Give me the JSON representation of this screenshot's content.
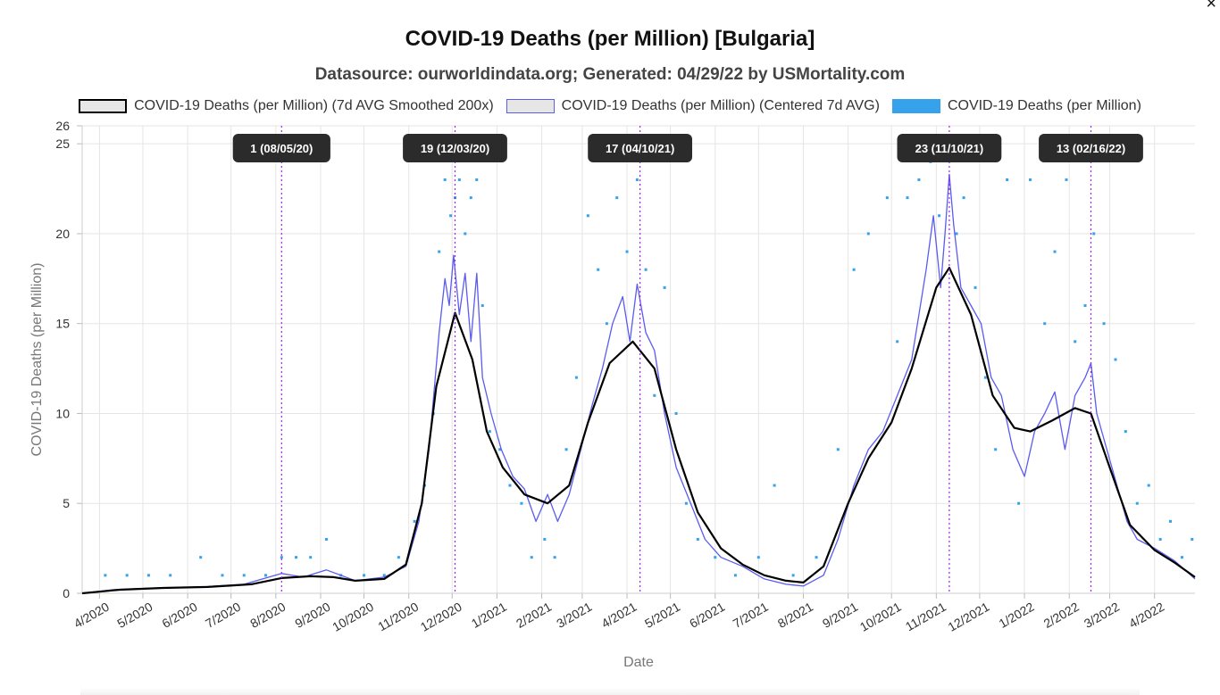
{
  "window": {
    "close_label": "×"
  },
  "chart_data": {
    "type": "line",
    "title": "COVID-19 Deaths (per Million) [Bulgaria]",
    "subtitle": "Datasource: ourworldindata.org; Generated: 04/29/22 by USMortality.com",
    "xlabel": "Date",
    "ylabel": "COVID-19 Deaths (per Million)",
    "ylim": [
      0,
      26
    ],
    "yticks": [
      0,
      5,
      10,
      15,
      20,
      25,
      26
    ],
    "xlim": [
      "2020-03-20",
      "2022-04-29"
    ],
    "xticks": [
      {
        "date": "2020-04-01",
        "label": "4/2020"
      },
      {
        "date": "2020-05-01",
        "label": "5/2020"
      },
      {
        "date": "2020-06-01",
        "label": "6/2020"
      },
      {
        "date": "2020-07-01",
        "label": "7/2020"
      },
      {
        "date": "2020-08-01",
        "label": "8/2020"
      },
      {
        "date": "2020-09-01",
        "label": "9/2020"
      },
      {
        "date": "2020-10-01",
        "label": "10/2020"
      },
      {
        "date": "2020-11-01",
        "label": "11/2020"
      },
      {
        "date": "2020-12-01",
        "label": "12/2020"
      },
      {
        "date": "2021-01-01",
        "label": "1/2021"
      },
      {
        "date": "2021-02-01",
        "label": "2/2021"
      },
      {
        "date": "2021-03-01",
        "label": "3/2021"
      },
      {
        "date": "2021-04-01",
        "label": "4/2021"
      },
      {
        "date": "2021-05-01",
        "label": "5/2021"
      },
      {
        "date": "2021-06-01",
        "label": "6/2021"
      },
      {
        "date": "2021-07-01",
        "label": "7/2021"
      },
      {
        "date": "2021-08-01",
        "label": "8/2021"
      },
      {
        "date": "2021-09-01",
        "label": "9/2021"
      },
      {
        "date": "2021-10-01",
        "label": "10/2021"
      },
      {
        "date": "2021-11-01",
        "label": "11/2021"
      },
      {
        "date": "2021-12-01",
        "label": "12/2021"
      },
      {
        "date": "2022-01-01",
        "label": "1/2022"
      },
      {
        "date": "2022-02-01",
        "label": "2/2022"
      },
      {
        "date": "2022-03-01",
        "label": "3/2022"
      },
      {
        "date": "2022-04-01",
        "label": "4/2022"
      }
    ],
    "grid": true,
    "legend_position": "top",
    "colors": {
      "smoothed": "#000000",
      "centered": "#5b5bf0",
      "daily": "#36a2eb",
      "annotation": "#a020f0",
      "grid": "#e5e5e5"
    },
    "series": [
      {
        "name": "COVID-19 Deaths (per Million) (7d AVG Smoothed 200x)",
        "style": "line",
        "points": [
          [
            "2020-03-20",
            0.0
          ],
          [
            "2020-04-15",
            0.2
          ],
          [
            "2020-05-15",
            0.3
          ],
          [
            "2020-06-15",
            0.35
          ],
          [
            "2020-07-15",
            0.5
          ],
          [
            "2020-08-05",
            0.85
          ],
          [
            "2020-08-25",
            0.95
          ],
          [
            "2020-09-10",
            0.9
          ],
          [
            "2020-09-25",
            0.7
          ],
          [
            "2020-10-15",
            0.8
          ],
          [
            "2020-10-30",
            1.6
          ],
          [
            "2020-11-10",
            5.0
          ],
          [
            "2020-11-20",
            11.5
          ],
          [
            "2020-12-03",
            15.6
          ],
          [
            "2020-12-15",
            13.0
          ],
          [
            "2020-12-25",
            9.0
          ],
          [
            "2021-01-05",
            7.0
          ],
          [
            "2021-01-20",
            5.5
          ],
          [
            "2021-02-05",
            5.0
          ],
          [
            "2021-02-20",
            6.0
          ],
          [
            "2021-03-05",
            9.5
          ],
          [
            "2021-03-20",
            12.8
          ],
          [
            "2021-04-05",
            14.0
          ],
          [
            "2021-04-20",
            12.5
          ],
          [
            "2021-05-05",
            8.0
          ],
          [
            "2021-05-20",
            4.5
          ],
          [
            "2021-06-05",
            2.5
          ],
          [
            "2021-06-20",
            1.6
          ],
          [
            "2021-07-05",
            1.0
          ],
          [
            "2021-07-20",
            0.7
          ],
          [
            "2021-08-01",
            0.6
          ],
          [
            "2021-08-15",
            1.5
          ],
          [
            "2021-09-01",
            5.0
          ],
          [
            "2021-09-15",
            7.5
          ],
          [
            "2021-10-01",
            9.5
          ],
          [
            "2021-10-15",
            12.5
          ],
          [
            "2021-11-01",
            17.0
          ],
          [
            "2021-11-10",
            18.1
          ],
          [
            "2021-11-25",
            15.5
          ],
          [
            "2021-12-10",
            11.0
          ],
          [
            "2021-12-25",
            9.2
          ],
          [
            "2022-01-05",
            9.0
          ],
          [
            "2022-01-20",
            9.6
          ],
          [
            "2022-02-05",
            10.3
          ],
          [
            "2022-02-16",
            10.0
          ],
          [
            "2022-03-01",
            7.0
          ],
          [
            "2022-03-15",
            3.8
          ],
          [
            "2022-04-01",
            2.4
          ],
          [
            "2022-04-15",
            1.7
          ],
          [
            "2022-04-29",
            0.9
          ]
        ]
      },
      {
        "name": "COVID-19 Deaths (per Million) (Centered 7d AVG)",
        "style": "line",
        "points": [
          [
            "2020-03-20",
            0.0
          ],
          [
            "2020-04-10",
            0.2
          ],
          [
            "2020-05-10",
            0.3
          ],
          [
            "2020-06-10",
            0.35
          ],
          [
            "2020-07-10",
            0.5
          ],
          [
            "2020-08-05",
            1.1
          ],
          [
            "2020-08-20",
            0.9
          ],
          [
            "2020-09-05",
            1.3
          ],
          [
            "2020-09-25",
            0.7
          ],
          [
            "2020-10-15",
            0.9
          ],
          [
            "2020-10-30",
            1.5
          ],
          [
            "2020-11-08",
            4.0
          ],
          [
            "2020-11-15",
            8.0
          ],
          [
            "2020-11-22",
            14.5
          ],
          [
            "2020-11-26",
            17.5
          ],
          [
            "2020-11-29",
            16.0
          ],
          [
            "2020-12-02",
            18.8
          ],
          [
            "2020-12-06",
            15.5
          ],
          [
            "2020-12-10",
            17.8
          ],
          [
            "2020-12-14",
            14.0
          ],
          [
            "2020-12-18",
            17.8
          ],
          [
            "2020-12-22",
            12.0
          ],
          [
            "2020-12-28",
            10.0
          ],
          [
            "2021-01-04",
            8.0
          ],
          [
            "2021-01-12",
            6.5
          ],
          [
            "2021-01-20",
            5.8
          ],
          [
            "2021-01-28",
            4.0
          ],
          [
            "2021-02-05",
            5.5
          ],
          [
            "2021-02-12",
            4.0
          ],
          [
            "2021-02-20",
            5.5
          ],
          [
            "2021-02-28",
            8.0
          ],
          [
            "2021-03-08",
            10.5
          ],
          [
            "2021-03-15",
            12.5
          ],
          [
            "2021-03-22",
            15.0
          ],
          [
            "2021-03-29",
            16.5
          ],
          [
            "2021-04-03",
            14.0
          ],
          [
            "2021-04-08",
            17.2
          ],
          [
            "2021-04-14",
            14.5
          ],
          [
            "2021-04-20",
            13.5
          ],
          [
            "2021-04-27",
            10.0
          ],
          [
            "2021-05-05",
            7.0
          ],
          [
            "2021-05-15",
            5.0
          ],
          [
            "2021-05-25",
            3.0
          ],
          [
            "2021-06-05",
            2.0
          ],
          [
            "2021-06-20",
            1.5
          ],
          [
            "2021-07-05",
            0.8
          ],
          [
            "2021-07-20",
            0.5
          ],
          [
            "2021-08-01",
            0.4
          ],
          [
            "2021-08-15",
            1.0
          ],
          [
            "2021-08-25",
            3.0
          ],
          [
            "2021-09-05",
            6.0
          ],
          [
            "2021-09-15",
            8.0
          ],
          [
            "2021-09-25",
            9.0
          ],
          [
            "2021-10-05",
            11.0
          ],
          [
            "2021-10-15",
            13.0
          ],
          [
            "2021-10-25",
            18.0
          ],
          [
            "2021-10-30",
            21.0
          ],
          [
            "2021-11-04",
            17.0
          ],
          [
            "2021-11-07",
            20.0
          ],
          [
            "2021-11-10",
            23.3
          ],
          [
            "2021-11-13",
            20.5
          ],
          [
            "2021-11-18",
            17.0
          ],
          [
            "2021-11-25",
            16.0
          ],
          [
            "2021-12-02",
            15.0
          ],
          [
            "2021-12-09",
            12.0
          ],
          [
            "2021-12-16",
            11.0
          ],
          [
            "2021-12-24",
            8.0
          ],
          [
            "2022-01-01",
            6.5
          ],
          [
            "2022-01-08",
            9.0
          ],
          [
            "2022-01-15",
            10.0
          ],
          [
            "2022-01-22",
            11.2
          ],
          [
            "2022-01-29",
            8.0
          ],
          [
            "2022-02-05",
            11.0
          ],
          [
            "2022-02-12",
            12.0
          ],
          [
            "2022-02-16",
            12.8
          ],
          [
            "2022-02-20",
            10.0
          ],
          [
            "2022-02-27",
            8.0
          ],
          [
            "2022-03-06",
            6.0
          ],
          [
            "2022-03-13",
            4.0
          ],
          [
            "2022-03-20",
            3.0
          ],
          [
            "2022-04-01",
            2.5
          ],
          [
            "2022-04-15",
            1.8
          ],
          [
            "2022-04-29",
            0.8
          ]
        ]
      },
      {
        "name": "COVID-19 Deaths (per Million)",
        "style": "points",
        "points": [
          [
            "2020-04-05",
            1
          ],
          [
            "2020-04-20",
            1
          ],
          [
            "2020-05-05",
            1
          ],
          [
            "2020-05-20",
            1
          ],
          [
            "2020-06-10",
            2
          ],
          [
            "2020-06-25",
            1
          ],
          [
            "2020-07-10",
            1
          ],
          [
            "2020-07-25",
            1
          ],
          [
            "2020-08-05",
            2
          ],
          [
            "2020-08-15",
            2
          ],
          [
            "2020-08-25",
            2
          ],
          [
            "2020-09-05",
            3
          ],
          [
            "2020-09-15",
            1
          ],
          [
            "2020-10-01",
            1
          ],
          [
            "2020-10-15",
            1
          ],
          [
            "2020-10-25",
            2
          ],
          [
            "2020-11-05",
            4
          ],
          [
            "2020-11-12",
            6
          ],
          [
            "2020-11-18",
            10
          ],
          [
            "2020-11-22",
            19
          ],
          [
            "2020-11-26",
            23
          ],
          [
            "2020-11-30",
            21
          ],
          [
            "2020-12-03",
            22
          ],
          [
            "2020-12-06",
            23
          ],
          [
            "2020-12-10",
            20
          ],
          [
            "2020-12-14",
            22
          ],
          [
            "2020-12-18",
            23
          ],
          [
            "2020-12-22",
            16
          ],
          [
            "2020-12-27",
            9
          ],
          [
            "2021-01-03",
            8
          ],
          [
            "2021-01-10",
            6
          ],
          [
            "2021-01-18",
            5
          ],
          [
            "2021-01-25",
            2
          ],
          [
            "2021-02-03",
            3
          ],
          [
            "2021-02-10",
            2
          ],
          [
            "2021-02-18",
            8
          ],
          [
            "2021-02-25",
            12
          ],
          [
            "2021-03-05",
            21
          ],
          [
            "2021-03-12",
            18
          ],
          [
            "2021-03-18",
            15
          ],
          [
            "2021-03-25",
            22
          ],
          [
            "2021-04-01",
            19
          ],
          [
            "2021-04-08",
            23
          ],
          [
            "2021-04-14",
            18
          ],
          [
            "2021-04-20",
            11
          ],
          [
            "2021-04-27",
            17
          ],
          [
            "2021-05-05",
            10
          ],
          [
            "2021-05-12",
            5
          ],
          [
            "2021-05-20",
            3
          ],
          [
            "2021-06-01",
            2
          ],
          [
            "2021-06-15",
            1
          ],
          [
            "2021-07-01",
            2
          ],
          [
            "2021-07-12",
            6
          ],
          [
            "2021-07-25",
            1
          ],
          [
            "2021-08-10",
            2
          ],
          [
            "2021-08-25",
            8
          ],
          [
            "2021-09-05",
            18
          ],
          [
            "2021-09-15",
            20
          ],
          [
            "2021-09-28",
            22
          ],
          [
            "2021-10-05",
            14
          ],
          [
            "2021-10-12",
            22
          ],
          [
            "2021-10-20",
            23
          ],
          [
            "2021-10-28",
            24
          ],
          [
            "2021-11-03",
            21
          ],
          [
            "2021-11-08",
            25
          ],
          [
            "2021-11-15",
            20
          ],
          [
            "2021-11-20",
            22
          ],
          [
            "2021-11-28",
            17
          ],
          [
            "2021-12-05",
            12
          ],
          [
            "2021-12-12",
            8
          ],
          [
            "2021-12-20",
            23
          ],
          [
            "2021-12-28",
            5
          ],
          [
            "2022-01-05",
            23
          ],
          [
            "2022-01-15",
            15
          ],
          [
            "2022-01-22",
            19
          ],
          [
            "2022-01-30",
            23
          ],
          [
            "2022-02-05",
            14
          ],
          [
            "2022-02-12",
            16
          ],
          [
            "2022-02-18",
            20
          ],
          [
            "2022-02-25",
            15
          ],
          [
            "2022-03-05",
            13
          ],
          [
            "2022-03-12",
            9
          ],
          [
            "2022-03-20",
            5
          ],
          [
            "2022-03-28",
            6
          ],
          [
            "2022-04-05",
            3
          ],
          [
            "2022-04-12",
            4
          ],
          [
            "2022-04-20",
            2
          ],
          [
            "2022-04-27",
            3
          ]
        ]
      }
    ],
    "annotations": [
      {
        "date": "2020-08-05",
        "label": "1 (08/05/20)"
      },
      {
        "date": "2020-12-03",
        "label": "19 (12/03/20)"
      },
      {
        "date": "2021-04-10",
        "label": "17 (04/10/21)"
      },
      {
        "date": "2021-11-10",
        "label": "23 (11/10/21)"
      },
      {
        "date": "2022-02-16",
        "label": "13 (02/16/22)"
      }
    ]
  }
}
